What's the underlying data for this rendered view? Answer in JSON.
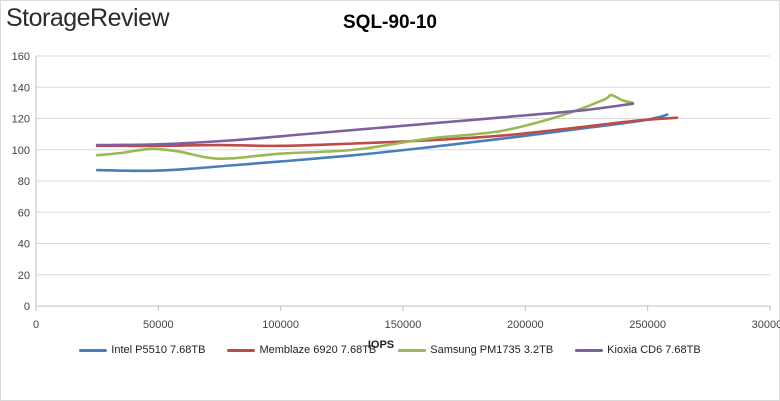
{
  "header": {
    "logo_text": "StorageReview"
  },
  "chart_data": {
    "type": "line",
    "title": "SQL-90-10",
    "xlabel": "IOPS",
    "ylabel": "",
    "xlim": [
      0,
      300000
    ],
    "ylim": [
      0,
      160
    ],
    "x_ticks": [
      0,
      50000,
      100000,
      150000,
      200000,
      250000,
      300000
    ],
    "x_tick_labels": [
      "0",
      "50000",
      "100000",
      "150000",
      "200000",
      "250000",
      "300000"
    ],
    "y_ticks": [
      0,
      20,
      40,
      60,
      80,
      100,
      120,
      140,
      160
    ],
    "y_tick_labels": [
      "0",
      "20",
      "40",
      "60",
      "80",
      "100",
      "120",
      "140",
      "160"
    ],
    "grid": true,
    "legend_position": "bottom",
    "series": [
      {
        "name": "Intel P5510 7.68TB",
        "color": "#4a7ebb",
        "points": [
          [
            25000,
            87
          ],
          [
            45000,
            86.5
          ],
          [
            60000,
            87.5
          ],
          [
            80000,
            90
          ],
          [
            100000,
            92.5
          ],
          [
            130000,
            96.5
          ],
          [
            160000,
            101.5
          ],
          [
            190000,
            107
          ],
          [
            220000,
            113
          ],
          [
            245000,
            118
          ],
          [
            255000,
            121
          ],
          [
            258000,
            122.5
          ]
        ]
      },
      {
        "name": "Memblaze 6920 7.68TB",
        "color": "#be4b48",
        "points": [
          [
            25000,
            102.5
          ],
          [
            50000,
            102.5
          ],
          [
            75000,
            103
          ],
          [
            100000,
            102.5
          ],
          [
            130000,
            104
          ],
          [
            160000,
            106
          ],
          [
            190000,
            109
          ],
          [
            220000,
            114
          ],
          [
            245000,
            118.5
          ],
          [
            262000,
            120.5
          ]
        ]
      },
      {
        "name": "Samsung PM1735 3.2TB",
        "color": "#98b954",
        "points": [
          [
            25000,
            96.5
          ],
          [
            35000,
            98
          ],
          [
            47000,
            100.5
          ],
          [
            58000,
            99
          ],
          [
            70000,
            95
          ],
          [
            80000,
            94.5
          ],
          [
            100000,
            97.5
          ],
          [
            130000,
            100
          ],
          [
            160000,
            107
          ],
          [
            190000,
            112
          ],
          [
            215000,
            122
          ],
          [
            232000,
            132
          ],
          [
            235000,
            135
          ],
          [
            240000,
            131.5
          ],
          [
            244000,
            130
          ]
        ]
      },
      {
        "name": "Kioxia CD6 7.68TB",
        "color": "#7d60a0",
        "points": [
          [
            25000,
            103
          ],
          [
            50000,
            103.5
          ],
          [
            80000,
            106
          ],
          [
            110000,
            110
          ],
          [
            140000,
            114
          ],
          [
            170000,
            118
          ],
          [
            200000,
            122
          ],
          [
            225000,
            125.5
          ],
          [
            244000,
            129.5
          ]
        ]
      }
    ]
  }
}
